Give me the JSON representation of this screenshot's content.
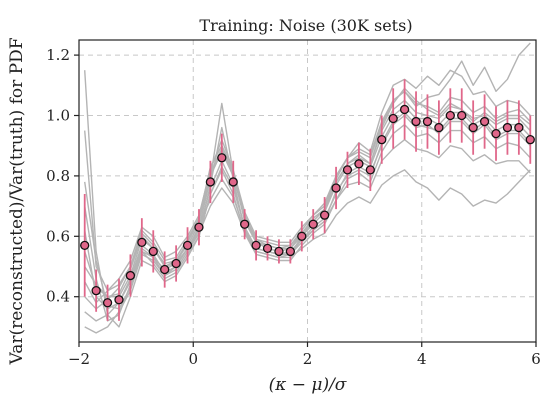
{
  "chart_data": {
    "type": "scatter",
    "title": "Training: Noise (30K sets)",
    "xlabel": "(κ − μ)/σ",
    "ylabel": "Var(reconstructed)/Var(truth) for PDF",
    "xlim": [
      -2,
      6
    ],
    "ylim": [
      0.25,
      1.25
    ],
    "xticks": [
      -2,
      0,
      2,
      4,
      6
    ],
    "xtick_labels": [
      "−2",
      "0",
      "2",
      "4",
      "6"
    ],
    "yticks": [
      0.4,
      0.6,
      0.8,
      1.0,
      1.2
    ],
    "ytick_labels": [
      "0.4",
      "0.6",
      "0.8",
      "1.0",
      "1.2"
    ],
    "grid": true,
    "colors": {
      "points": "#e0678a",
      "error_bars": "#e0678a",
      "realizations": "#b4b4b4"
    },
    "points": [
      {
        "x": -1.9,
        "y": 0.57,
        "err": 0.17
      },
      {
        "x": -1.7,
        "y": 0.42,
        "err": 0.07
      },
      {
        "x": -1.5,
        "y": 0.38,
        "err": 0.06
      },
      {
        "x": -1.3,
        "y": 0.39,
        "err": 0.07
      },
      {
        "x": -1.1,
        "y": 0.47,
        "err": 0.07
      },
      {
        "x": -0.9,
        "y": 0.58,
        "err": 0.08
      },
      {
        "x": -0.7,
        "y": 0.55,
        "err": 0.07
      },
      {
        "x": -0.5,
        "y": 0.49,
        "err": 0.06
      },
      {
        "x": -0.3,
        "y": 0.51,
        "err": 0.06
      },
      {
        "x": -0.1,
        "y": 0.57,
        "err": 0.06
      },
      {
        "x": 0.1,
        "y": 0.63,
        "err": 0.06
      },
      {
        "x": 0.3,
        "y": 0.78,
        "err": 0.07
      },
      {
        "x": 0.5,
        "y": 0.86,
        "err": 0.08
      },
      {
        "x": 0.7,
        "y": 0.78,
        "err": 0.07
      },
      {
        "x": 0.9,
        "y": 0.64,
        "err": 0.05
      },
      {
        "x": 1.1,
        "y": 0.57,
        "err": 0.05
      },
      {
        "x": 1.3,
        "y": 0.56,
        "err": 0.04
      },
      {
        "x": 1.5,
        "y": 0.55,
        "err": 0.04
      },
      {
        "x": 1.7,
        "y": 0.55,
        "err": 0.04
      },
      {
        "x": 1.9,
        "y": 0.6,
        "err": 0.05
      },
      {
        "x": 2.1,
        "y": 0.64,
        "err": 0.05
      },
      {
        "x": 2.3,
        "y": 0.67,
        "err": 0.06
      },
      {
        "x": 2.5,
        "y": 0.76,
        "err": 0.07
      },
      {
        "x": 2.7,
        "y": 0.82,
        "err": 0.06
      },
      {
        "x": 2.9,
        "y": 0.84,
        "err": 0.07
      },
      {
        "x": 3.1,
        "y": 0.82,
        "err": 0.07
      },
      {
        "x": 3.3,
        "y": 0.92,
        "err": 0.08
      },
      {
        "x": 3.5,
        "y": 0.99,
        "err": 0.1
      },
      {
        "x": 3.7,
        "y": 1.02,
        "err": 0.1
      },
      {
        "x": 3.9,
        "y": 0.98,
        "err": 0.1
      },
      {
        "x": 4.1,
        "y": 0.98,
        "err": 0.09
      },
      {
        "x": 4.3,
        "y": 0.96,
        "err": 0.09
      },
      {
        "x": 4.5,
        "y": 1.0,
        "err": 0.09
      },
      {
        "x": 4.7,
        "y": 1.0,
        "err": 0.09
      },
      {
        "x": 4.9,
        "y": 0.96,
        "err": 0.09
      },
      {
        "x": 5.1,
        "y": 0.98,
        "err": 0.09
      },
      {
        "x": 5.3,
        "y": 0.94,
        "err": 0.09
      },
      {
        "x": 5.5,
        "y": 0.96,
        "err": 0.09
      },
      {
        "x": 5.7,
        "y": 0.96,
        "err": 0.09
      },
      {
        "x": 5.9,
        "y": 0.92,
        "err": 0.08
      }
    ],
    "realizations": [
      {
        "y": [
          0.62,
          0.4,
          0.36,
          0.38,
          0.46,
          0.57,
          0.54,
          0.48,
          0.5,
          0.56,
          0.62,
          0.76,
          0.85,
          0.77,
          0.63,
          0.56,
          0.55,
          0.54,
          0.55,
          0.59,
          0.63,
          0.66,
          0.74,
          0.81,
          0.83,
          0.81,
          0.9,
          0.97,
          1.0,
          0.96,
          0.97,
          0.94,
          0.98,
          0.98,
          0.94,
          0.97,
          0.92,
          0.94,
          0.94,
          0.9
        ]
      },
      {
        "y": [
          0.5,
          0.44,
          0.4,
          0.41,
          0.49,
          0.6,
          0.56,
          0.51,
          0.52,
          0.58,
          0.65,
          0.8,
          0.88,
          0.8,
          0.66,
          0.59,
          0.57,
          0.56,
          0.56,
          0.61,
          0.66,
          0.69,
          0.78,
          0.84,
          0.86,
          0.84,
          0.95,
          1.02,
          1.05,
          1.01,
          1.0,
          0.99,
          1.03,
          1.02,
          0.99,
          1.0,
          0.97,
          0.99,
          0.99,
          0.95
        ]
      },
      {
        "y": [
          1.15,
          0.55,
          0.34,
          0.3,
          0.4,
          0.52,
          0.5,
          0.45,
          0.47,
          0.53,
          0.6,
          0.74,
          0.82,
          0.74,
          0.61,
          0.54,
          0.53,
          0.52,
          0.52,
          0.57,
          0.61,
          0.64,
          0.72,
          0.79,
          0.81,
          0.78,
          0.88,
          0.94,
          0.97,
          0.93,
          0.94,
          0.91,
          0.95,
          0.95,
          0.91,
          0.93,
          0.89,
          0.91,
          0.9,
          0.86
        ]
      },
      {
        "y": [
          0.45,
          0.38,
          0.42,
          0.46,
          0.52,
          0.63,
          0.6,
          0.53,
          0.55,
          0.6,
          0.67,
          0.82,
          0.92,
          0.82,
          0.68,
          0.6,
          0.59,
          0.58,
          0.58,
          0.63,
          0.67,
          0.71,
          0.8,
          0.86,
          0.88,
          0.86,
          0.97,
          1.05,
          1.08,
          1.04,
          1.03,
          1.01,
          1.06,
          1.05,
          1.01,
          1.03,
          0.99,
          1.01,
          1.02,
          0.98
        ]
      },
      {
        "y": [
          0.3,
          0.28,
          0.3,
          0.35,
          0.42,
          0.54,
          0.52,
          0.47,
          0.49,
          0.55,
          0.61,
          0.77,
          0.96,
          0.79,
          0.62,
          0.55,
          0.54,
          0.53,
          0.54,
          0.58,
          0.62,
          0.65,
          0.75,
          0.8,
          0.82,
          0.8,
          0.91,
          0.98,
          1.01,
          0.97,
          0.96,
          0.95,
          0.99,
          0.99,
          0.95,
          0.98,
          0.93,
          0.95,
          0.95,
          0.91
        ]
      },
      {
        "y": [
          0.7,
          0.46,
          0.32,
          0.34,
          0.44,
          0.55,
          0.53,
          0.47,
          0.5,
          0.56,
          0.63,
          0.79,
          1.04,
          0.81,
          0.65,
          0.58,
          0.56,
          0.55,
          0.56,
          0.6,
          0.64,
          0.68,
          0.77,
          0.83,
          0.85,
          0.83,
          0.93,
          1.0,
          1.03,
          0.99,
          0.99,
          0.97,
          1.01,
          1.01,
          0.97,
          0.99,
          0.95,
          0.97,
          0.97,
          0.93
        ]
      },
      {
        "y": [
          0.4,
          0.36,
          0.39,
          0.43,
          0.5,
          0.61,
          0.57,
          0.5,
          0.52,
          0.57,
          0.64,
          0.72,
          0.79,
          0.73,
          0.62,
          0.56,
          0.55,
          0.54,
          0.54,
          0.6,
          0.65,
          0.69,
          0.79,
          0.86,
          0.91,
          0.88,
          1.01,
          1.1,
          1.12,
          1.09,
          1.13,
          1.1,
          1.15,
          1.13,
          1.07,
          1.08,
          1.03,
          1.05,
          1.04,
          1.0
        ]
      },
      {
        "y": [
          0.78,
          0.52,
          0.37,
          0.36,
          0.43,
          0.55,
          0.51,
          0.46,
          0.48,
          0.54,
          0.6,
          0.74,
          0.83,
          0.76,
          0.63,
          0.56,
          0.55,
          0.54,
          0.54,
          0.59,
          0.62,
          0.65,
          0.72,
          0.77,
          0.78,
          0.76,
          0.85,
          0.89,
          0.92,
          0.89,
          0.88,
          0.86,
          0.9,
          0.89,
          0.85,
          0.87,
          0.84,
          0.85,
          0.85,
          0.81
        ]
      },
      {
        "y": [
          0.55,
          0.43,
          0.4,
          0.4,
          0.47,
          0.59,
          0.56,
          0.5,
          0.51,
          0.58,
          0.66,
          0.83,
          0.9,
          0.82,
          0.67,
          0.59,
          0.58,
          0.57,
          0.57,
          0.62,
          0.67,
          0.7,
          0.8,
          0.86,
          0.89,
          0.87,
          0.98,
          1.05,
          1.08,
          1.03,
          1.06,
          1.07,
          1.12,
          1.18,
          1.1,
          1.16,
          1.08,
          1.12,
          1.2,
          1.24
        ]
      },
      {
        "y": [
          0.35,
          0.32,
          0.34,
          0.38,
          0.45,
          0.56,
          0.53,
          0.49,
          0.51,
          0.56,
          0.61,
          0.7,
          0.76,
          0.71,
          0.61,
          0.55,
          0.54,
          0.53,
          0.53,
          0.56,
          0.59,
          0.61,
          0.67,
          0.71,
          0.73,
          0.71,
          0.77,
          0.8,
          0.82,
          0.78,
          0.76,
          0.72,
          0.76,
          0.74,
          0.7,
          0.72,
          0.71,
          0.74,
          0.78,
          0.82
        ]
      },
      {
        "y": [
          0.95,
          0.5,
          0.42,
          0.44,
          0.5,
          0.62,
          0.58,
          0.52,
          0.53,
          0.59,
          0.66,
          0.81,
          0.89,
          0.81,
          0.66,
          0.58,
          0.57,
          0.56,
          0.57,
          0.61,
          0.65,
          0.69,
          0.78,
          0.84,
          0.87,
          0.84,
          0.96,
          1.04,
          1.09,
          1.05,
          1.02,
          1.0,
          1.04,
          1.02,
          0.98,
          1.01,
          0.98,
          1.0,
          1.0,
          0.97
        ]
      }
    ]
  }
}
